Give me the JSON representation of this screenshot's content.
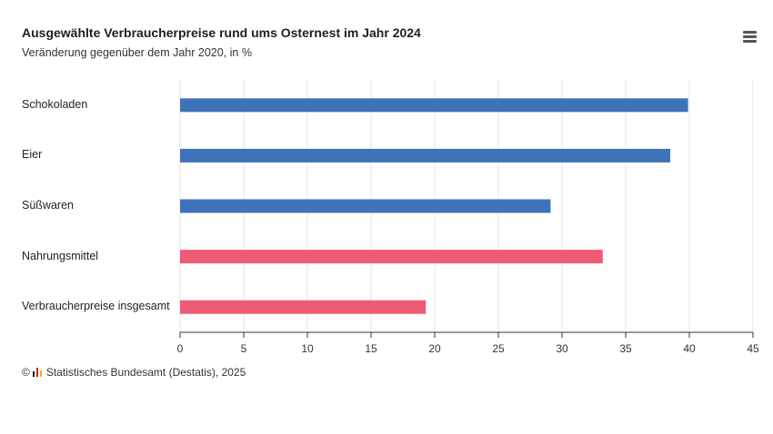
{
  "title": "Ausgewählte Verbraucherpreise rund ums Osternest im Jahr 2024",
  "subtitle": "Veränderung gegenüber dem Jahr 2020, in %",
  "menu_icon": "hamburger-menu-icon",
  "footer": {
    "copyright": "©",
    "source": "Statistisches Bundesamt (Destatis), 2025"
  },
  "colors": {
    "blue": "#3f73b9",
    "red": "#ef5b74",
    "grid": "#e6e6e6",
    "axis": "#333333"
  },
  "chart_data": {
    "type": "bar",
    "orientation": "horizontal",
    "categories": [
      "Schokoladen",
      "Eier",
      "Süßwaren",
      "Nahrungsmittel",
      "Verbraucherpreise insgesamt"
    ],
    "values": [
      39.9,
      38.5,
      29.1,
      33.2,
      19.3
    ],
    "bar_colors": [
      "#3f73b9",
      "#3f73b9",
      "#3f73b9",
      "#ef5b74",
      "#ef5b74"
    ],
    "xlim": [
      0,
      45
    ],
    "xticks": [
      "0",
      "5",
      "10",
      "15",
      "20",
      "25",
      "30",
      "35",
      "40",
      "45"
    ],
    "grid": true,
    "legend": false
  }
}
